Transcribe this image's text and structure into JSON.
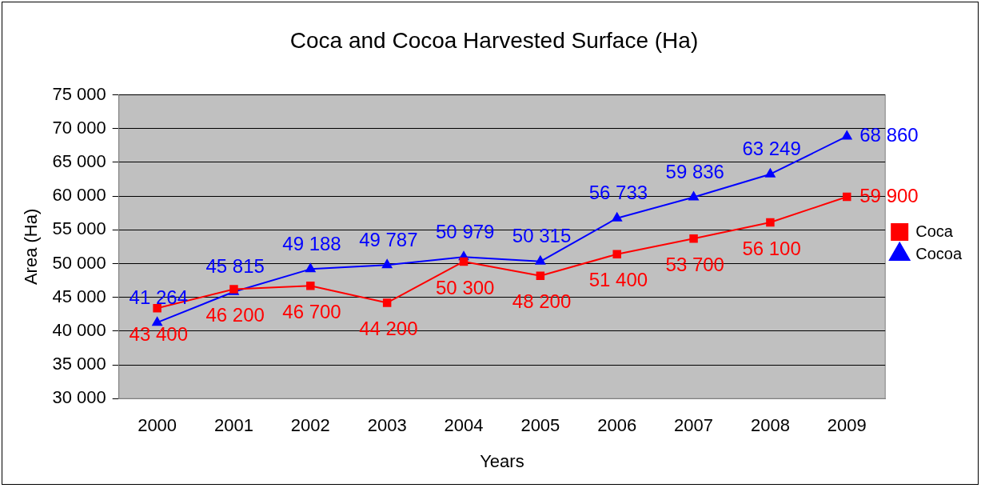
{
  "chart_data": {
    "type": "line",
    "title": "Coca and Cocoa Harvested Surface (Ha)",
    "xlabel": "Years",
    "ylabel": "Area (Ha)",
    "categories": [
      "2000",
      "2001",
      "2002",
      "2003",
      "2004",
      "2005",
      "2006",
      "2007",
      "2008",
      "2009"
    ],
    "series": [
      {
        "name": "Coca",
        "color": "#ff0000",
        "marker": "square",
        "values": [
          43400,
          46200,
          46700,
          44200,
          50300,
          48200,
          51400,
          53700,
          56100,
          59900
        ],
        "value_labels": [
          "43 400",
          "46 200",
          "46 700",
          "44 200",
          "50 300",
          "48 200",
          "51 400",
          "53 700",
          "56 100",
          "59 900"
        ]
      },
      {
        "name": "Cocoa",
        "color": "#0000ff",
        "marker": "triangle",
        "values": [
          41264,
          45815,
          49188,
          49787,
          50979,
          50315,
          56733,
          59836,
          63249,
          68860
        ],
        "value_labels": [
          "41 264",
          "45 815",
          "49 188",
          "49 787",
          "50 979",
          "50 315",
          "56 733",
          "59 836",
          "63 249",
          "68 860"
        ]
      }
    ],
    "ylim": [
      30000,
      75000
    ],
    "yticks": [
      {
        "value": 30000,
        "label": "30 000"
      },
      {
        "value": 35000,
        "label": "35 000"
      },
      {
        "value": 40000,
        "label": "40 000"
      },
      {
        "value": 45000,
        "label": "45 000"
      },
      {
        "value": 50000,
        "label": "50 000"
      },
      {
        "value": 55000,
        "label": "55 000"
      },
      {
        "value": 60000,
        "label": "60 000"
      },
      {
        "value": 65000,
        "label": "65 000"
      },
      {
        "value": 70000,
        "label": "70 000"
      },
      {
        "value": 75000,
        "label": "75 000"
      }
    ],
    "grid": "y",
    "legend": "right",
    "line_style": "solid"
  }
}
